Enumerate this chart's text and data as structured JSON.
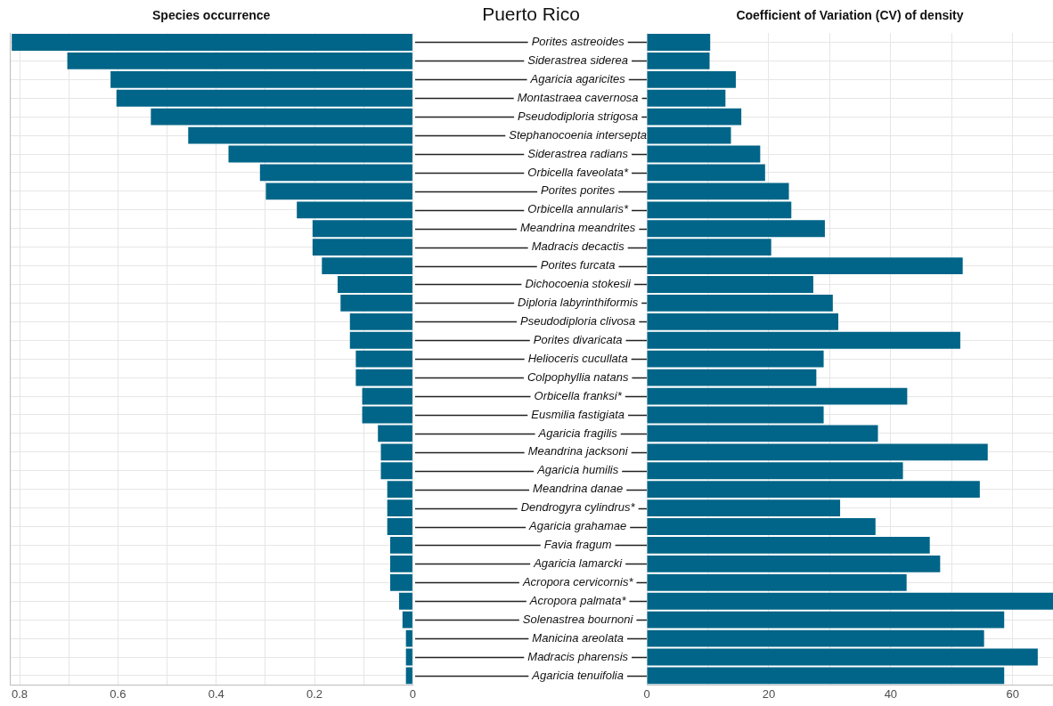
{
  "chart_data": [
    {
      "type": "bar",
      "orientation": "horizontal",
      "title": "Species occurrence",
      "tick_labels": "x",
      "grid": true,
      "legend": false,
      "categories": [
        null,
        null,
        null,
        null,
        null,
        null,
        null,
        null,
        null,
        null,
        null,
        null,
        null,
        null,
        null,
        null,
        null,
        null,
        null,
        null,
        null,
        null,
        null,
        null,
        null,
        null,
        null,
        null,
        null,
        null,
        null,
        null,
        null,
        null,
        null
      ],
      "values": [
        0.816,
        0.703,
        0.615,
        0.603,
        0.533,
        0.457,
        0.375,
        0.311,
        0.299,
        0.236,
        0.204,
        0.204,
        0.185,
        0.153,
        0.147,
        0.128,
        0.128,
        0.116,
        0.116,
        0.103,
        0.103,
        0.071,
        0.065,
        0.065,
        0.052,
        0.052,
        0.052,
        0.046,
        0.046,
        0.046,
        0.028,
        0.021,
        0.014,
        0.014,
        0.014
      ],
      "color": "#006588",
      "xlim": [
        0.82,
        0
      ],
      "xticks": [
        0.8,
        {
          "value": 0.7,
          "label": null
        },
        0.6,
        {
          "value": 0.5,
          "label": null
        },
        0.4,
        {
          "value": 0.3,
          "label": null
        },
        0.2,
        {
          "value": 0.1,
          "label": null
        },
        0
      ]
    },
    {
      "type": "bar",
      "orientation": "horizontal",
      "title": "Coefficient of Variation (CV) of density",
      "grid": true,
      "legend": false,
      "annotations": [
        "Puerto Rico"
      ],
      "categories": [
        "Porites astreoides",
        "Siderastrea siderea",
        "Agaricia agaricites",
        "Montastraea cavernosa",
        "Pseudodiploria strigosa",
        "Stephanocoenia intersepta",
        "Siderastrea radians",
        "Orbicella faveolata*",
        "Porites porites",
        "Orbicella annularis*",
        "Meandrina meandrites",
        "Madracis decactis",
        "Porites furcata",
        "Dichocoenia stokesii",
        "Diploria labyrinthiformis",
        "Pseudodiploria clivosa",
        "Porites divaricata",
        "Helioceris cucullata",
        "Colpophyllia natans",
        "Orbicella franksi*",
        "Eusmilia fastigiata",
        "Agaricia fragilis",
        "Meandrina jacksoni",
        "Agaricia humilis",
        "Meandrina danae",
        "Dendrogyra cylindrus*",
        "Agaricia grahamae",
        "Favia fragum",
        "Agaricia lamarcki",
        "Acropora cervicornis*",
        "Acropora palmata*",
        "Solenastrea bournoni",
        "Manicina areolata",
        "Madracis pharensis",
        "Agaricia tenuifolia"
      ],
      "values": [
        10.4,
        10.3,
        14.6,
        12.9,
        15.5,
        13.8,
        18.6,
        19.4,
        23.3,
        23.7,
        29.2,
        20.4,
        51.8,
        27.3,
        30.5,
        31.4,
        51.4,
        29.0,
        27.8,
        42.7,
        29.0,
        37.9,
        55.9,
        42.0,
        54.6,
        31.7,
        37.5,
        46.4,
        48.1,
        42.6,
        66.6,
        58.6,
        55.3,
        64.1,
        58.6
      ],
      "color": "#006588",
      "xlim": [
        0,
        66.6
      ],
      "xticks": [
        0,
        {
          "value": 10,
          "label": null
        },
        20,
        {
          "value": 30,
          "label": null
        },
        40,
        {
          "value": 50,
          "label": null
        },
        60
      ]
    }
  ]
}
